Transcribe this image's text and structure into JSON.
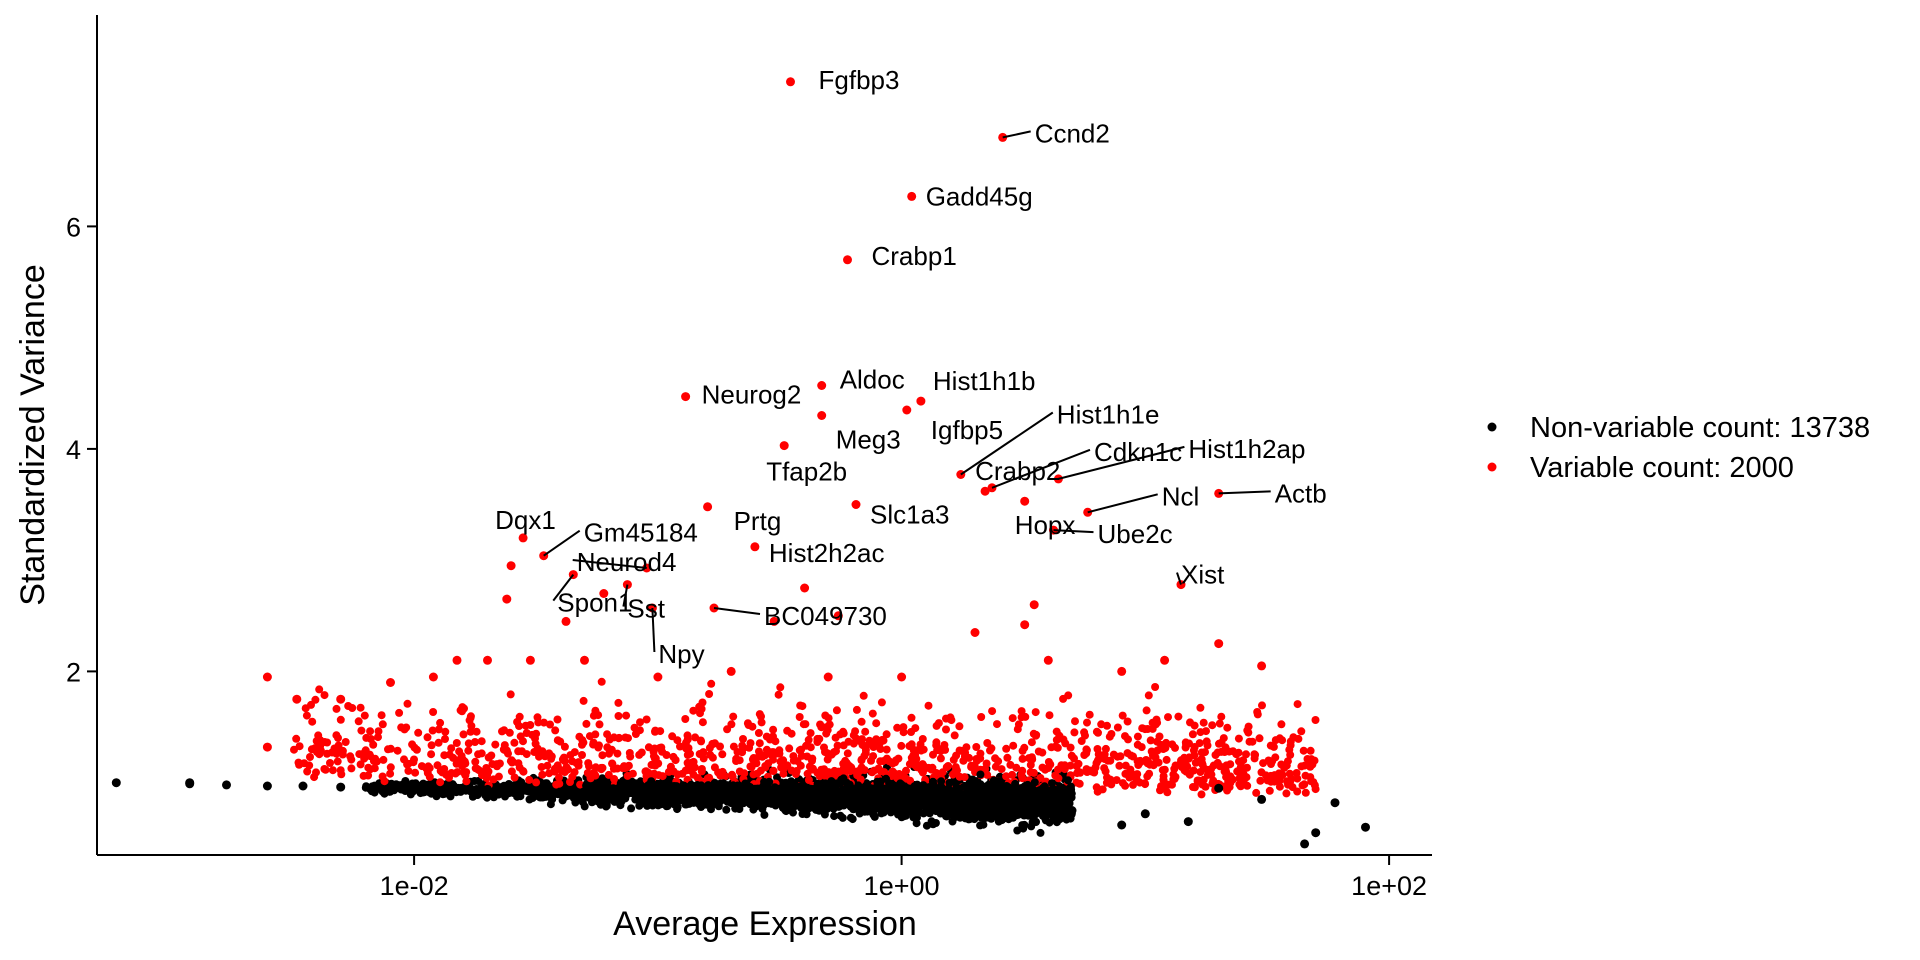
{
  "chart_data": {
    "type": "scatter",
    "title": "",
    "xlabel": "Average Expression",
    "ylabel": "Standardized Variance",
    "x_scale": "log10",
    "xlim": [
      0.0005,
      150
    ],
    "ylim": [
      0.35,
      7.9
    ],
    "x_ticks": [
      0.01,
      1,
      100
    ],
    "x_tick_labels": [
      "1e-02",
      "1e+00",
      "1e+02"
    ],
    "y_ticks": [
      2,
      4,
      6
    ],
    "y_tick_labels": [
      "2",
      "4",
      "6"
    ],
    "grid": false,
    "legend_position": "right",
    "series": [
      {
        "name": "Non-variable count: 13738",
        "color": "#000000",
        "points": [
          [
            0.0006,
            1.0
          ],
          [
            0.0012,
            1.0
          ],
          [
            0.0012,
            0.99
          ],
          [
            0.0017,
            0.98
          ],
          [
            0.0025,
            0.97
          ],
          [
            0.0035,
            0.97
          ],
          [
            0.005,
            0.96
          ],
          [
            0.007,
            0.96
          ],
          [
            0.01,
            0.95
          ],
          [
            0.02,
            0.94
          ],
          [
            0.05,
            0.92
          ],
          [
            0.1,
            0.9
          ],
          [
            0.3,
            0.88
          ],
          [
            1.0,
            0.86
          ],
          [
            3.0,
            0.82
          ],
          [
            5.0,
            0.75
          ],
          [
            8.0,
            0.62
          ],
          [
            10.0,
            0.72
          ],
          [
            15.0,
            0.65
          ],
          [
            20.0,
            0.95
          ],
          [
            30.0,
            0.85
          ],
          [
            45.0,
            0.45
          ],
          [
            50.0,
            0.55
          ],
          [
            60.0,
            0.82
          ],
          [
            80.0,
            0.6
          ]
        ]
      },
      {
        "name": "Variable count: 2000",
        "color": "#ff0000",
        "points": [
          [
            0.0025,
            1.95
          ],
          [
            0.0025,
            1.32
          ],
          [
            0.0033,
            1.75
          ],
          [
            0.005,
            1.75
          ],
          [
            0.008,
            1.9
          ],
          [
            0.012,
            1.95
          ],
          [
            0.015,
            2.1
          ],
          [
            0.02,
            2.1
          ],
          [
            0.03,
            2.1
          ],
          [
            0.05,
            2.1
          ],
          [
            0.1,
            1.95
          ],
          [
            0.2,
            2.0
          ],
          [
            0.5,
            1.95
          ],
          [
            1.0,
            1.95
          ],
          [
            2.0,
            2.35
          ],
          [
            4.0,
            2.1
          ],
          [
            8.0,
            2.0
          ],
          [
            12.0,
            2.1
          ],
          [
            20.0,
            2.25
          ],
          [
            30.0,
            2.05
          ],
          [
            0.025,
            2.95
          ],
          [
            0.024,
            2.65
          ],
          [
            0.042,
            2.45
          ],
          [
            0.06,
            2.7
          ],
          [
            0.3,
            2.45
          ],
          [
            0.4,
            2.75
          ],
          [
            0.55,
            2.5
          ],
          [
            3.5,
            2.6
          ],
          [
            3.2,
            2.42
          ]
        ],
        "labeled_points": [
          {
            "gene": "Fgfbp3",
            "x": 0.35,
            "y": 7.3
          },
          {
            "gene": "Ccnd2",
            "x": 2.6,
            "y": 6.8
          },
          {
            "gene": "Gadd45g",
            "x": 1.1,
            "y": 6.27
          },
          {
            "gene": "Crabp1",
            "x": 0.6,
            "y": 5.7
          },
          {
            "gene": "Neurog2",
            "x": 0.13,
            "y": 4.47
          },
          {
            "gene": "Aldoc",
            "x": 0.47,
            "y": 4.57
          },
          {
            "gene": "Hist1h1b",
            "x": 1.2,
            "y": 4.43
          },
          {
            "gene": "Igfbp5",
            "x": 1.05,
            "y": 4.35
          },
          {
            "gene": "Meg3",
            "x": 0.47,
            "y": 4.3
          },
          {
            "gene": "Hist1h1e",
            "x": 1.75,
            "y": 3.77
          },
          {
            "gene": "Tfap2b",
            "x": 0.33,
            "y": 4.03
          },
          {
            "gene": "Crabp2",
            "x": 2.2,
            "y": 3.62
          },
          {
            "gene": "Cdkn1c",
            "x": 2.35,
            "y": 3.65
          },
          {
            "gene": "Hist1h2ap",
            "x": 4.4,
            "y": 3.73
          },
          {
            "gene": "Actb",
            "x": 20.0,
            "y": 3.6
          },
          {
            "gene": "Ncl",
            "x": 5.8,
            "y": 3.43
          },
          {
            "gene": "Hopx",
            "x": 3.2,
            "y": 3.53
          },
          {
            "gene": "Slc1a3",
            "x": 0.65,
            "y": 3.5
          },
          {
            "gene": "Prtg",
            "x": 0.16,
            "y": 3.48
          },
          {
            "gene": "Dqx1",
            "x": 0.028,
            "y": 3.2
          },
          {
            "gene": "Gm45184",
            "x": 0.034,
            "y": 3.04
          },
          {
            "gene": "Ube2c",
            "x": 4.2,
            "y": 3.27
          },
          {
            "gene": "Hist2h2ac",
            "x": 0.25,
            "y": 3.12
          },
          {
            "gene": "Xist",
            "x": 14.0,
            "y": 2.78
          },
          {
            "gene": "Neurod4",
            "x": 0.09,
            "y": 2.93
          },
          {
            "gene": "BC049730",
            "x": 0.17,
            "y": 2.57
          },
          {
            "gene": "Spon1",
            "x": 0.045,
            "y": 2.87
          },
          {
            "gene": "Sst",
            "x": 0.075,
            "y": 2.78
          },
          {
            "gene": "Npy",
            "x": 0.095,
            "y": 2.57
          }
        ]
      }
    ]
  }
}
